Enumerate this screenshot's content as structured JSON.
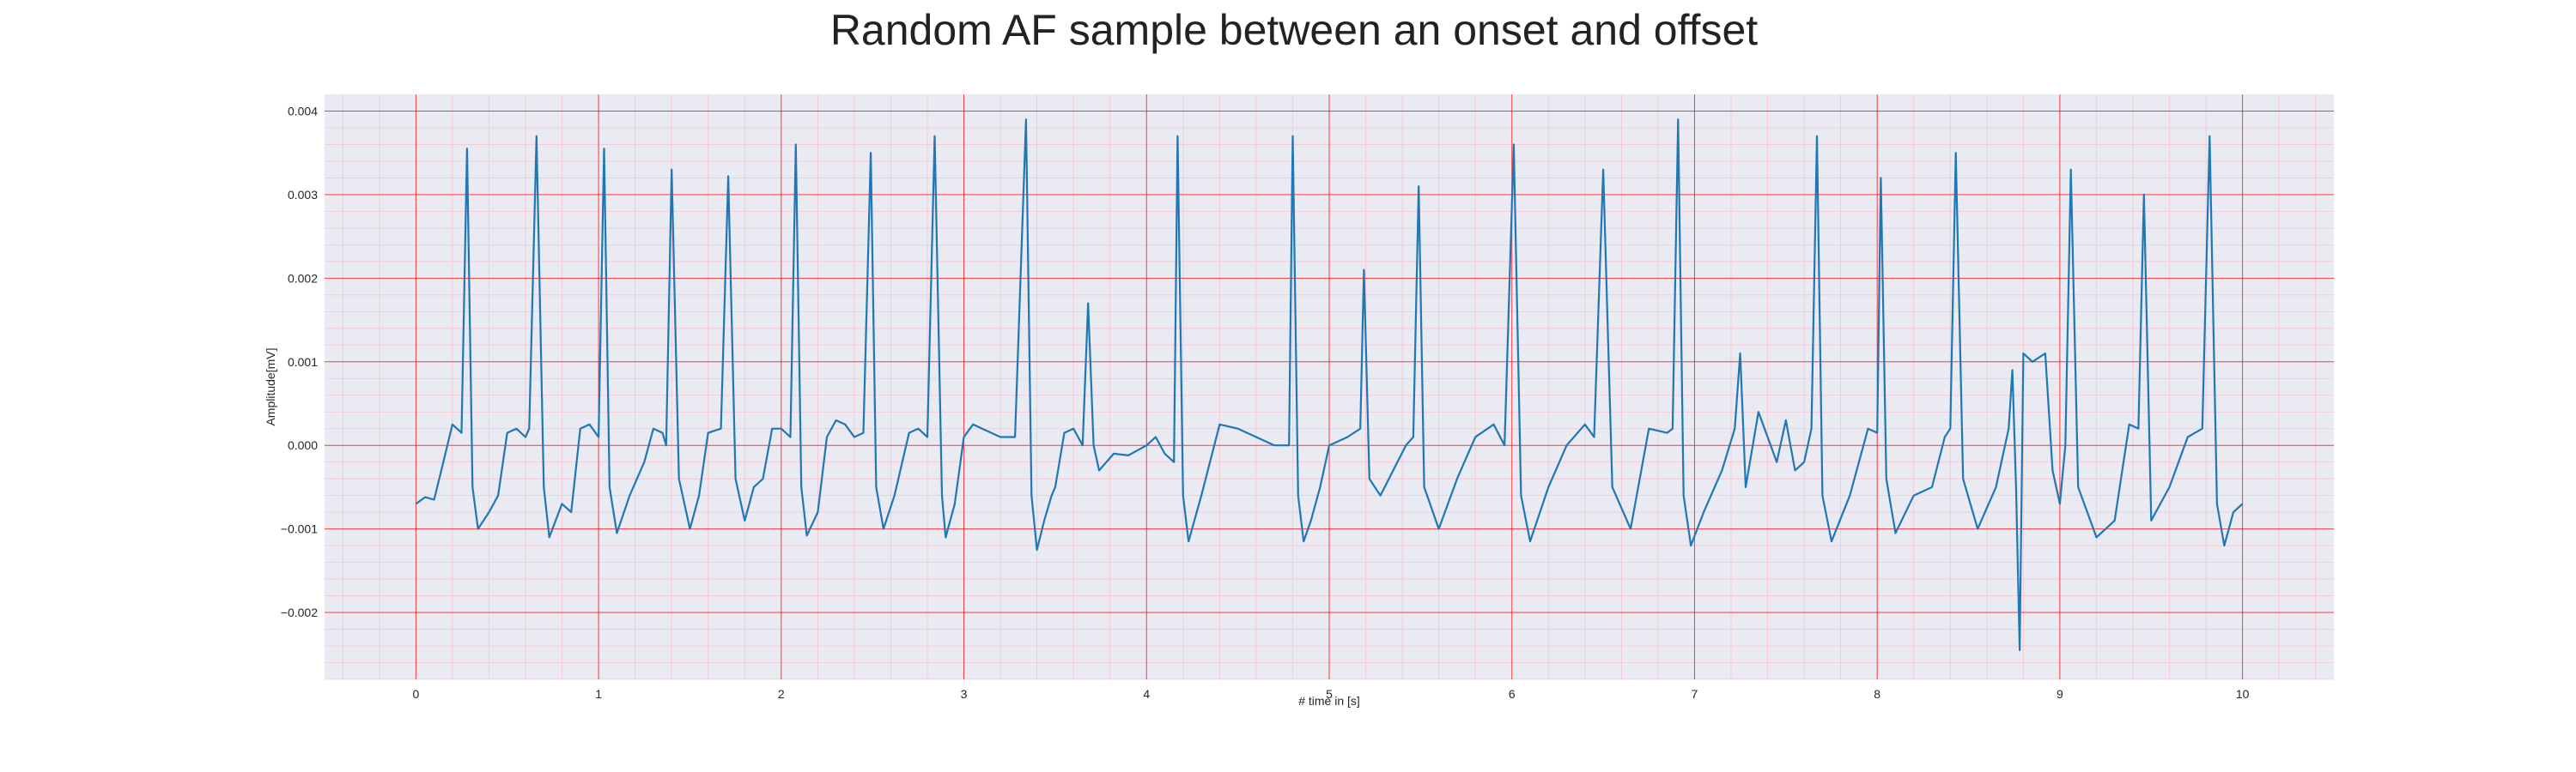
{
  "chart_data": {
    "type": "line",
    "title": "Random AF sample between an onset and offset",
    "xlabel": "# time in [s]",
    "ylabel": "Amplitude[mV]",
    "xlim": [
      -0.5,
      10.5
    ],
    "ylim": [
      -0.0028,
      0.0042
    ],
    "x_ticks": [
      0,
      1,
      2,
      3,
      4,
      5,
      6,
      7,
      8,
      9,
      10
    ],
    "x_tick_labels": [
      "0",
      "1",
      "2",
      "3",
      "4",
      "5",
      "6",
      "7",
      "8",
      "9",
      "10"
    ],
    "y_ticks": [
      -0.002,
      -0.001,
      0.0,
      0.001,
      0.002,
      0.003,
      0.004
    ],
    "y_tick_labels": [
      "−0.002",
      "−0.001",
      "0.000",
      "0.001",
      "0.002",
      "0.003",
      "0.004"
    ],
    "grid": true,
    "minor_grid": true,
    "legend": "none",
    "colors": {
      "line": "#1f77b4",
      "major_grid": "#ff0000",
      "minor_grid": "#ffb6c1",
      "plot_background": "#eaeaf2"
    },
    "series": [
      {
        "x": [
          0.0,
          0.05,
          0.1,
          0.15,
          0.2,
          0.25,
          0.28,
          0.31,
          0.34,
          0.4,
          0.45,
          0.5,
          0.55,
          0.6,
          0.62,
          0.66,
          0.7,
          0.73,
          0.8,
          0.85,
          0.9,
          0.95,
          1.0,
          1.03,
          1.06,
          1.1,
          1.17,
          1.25,
          1.3,
          1.35,
          1.37,
          1.4,
          1.44,
          1.5,
          1.55,
          1.6,
          1.67,
          1.71,
          1.75,
          1.8,
          1.85,
          1.9,
          1.95,
          2.0,
          2.05,
          2.08,
          2.11,
          2.14,
          2.2,
          2.25,
          2.3,
          2.35,
          2.4,
          2.45,
          2.49,
          2.52,
          2.56,
          2.62,
          2.7,
          2.75,
          2.8,
          2.84,
          2.88,
          2.9,
          2.95,
          3.0,
          3.05,
          3.1,
          3.2,
          3.28,
          3.34,
          3.37,
          3.4,
          3.44,
          3.48,
          3.5,
          3.55,
          3.6,
          3.65,
          3.68,
          3.71,
          3.74,
          3.78,
          3.82,
          3.9,
          4.0,
          4.05,
          4.1,
          4.15,
          4.17,
          4.2,
          4.23,
          4.3,
          4.4,
          4.5,
          4.6,
          4.7,
          4.78,
          4.8,
          4.83,
          4.86,
          4.9,
          4.95,
          5.0,
          5.1,
          5.17,
          5.19,
          5.22,
          5.28,
          5.35,
          5.42,
          5.46,
          5.49,
          5.52,
          5.6,
          5.7,
          5.8,
          5.9,
          5.96,
          6.01,
          6.05,
          6.1,
          6.2,
          6.3,
          6.4,
          6.45,
          6.5,
          6.55,
          6.65,
          6.75,
          6.85,
          6.88,
          6.91,
          6.94,
          6.98,
          7.05,
          7.15,
          7.22,
          7.25,
          7.28,
          7.35,
          7.45,
          7.5,
          7.55,
          7.6,
          7.64,
          7.67,
          7.7,
          7.75,
          7.85,
          7.95,
          8.0,
          8.02,
          8.05,
          8.1,
          8.2,
          8.3,
          8.37,
          8.4,
          8.43,
          8.47,
          8.55,
          8.65,
          8.72,
          8.74,
          8.76,
          8.78,
          8.8,
          8.85,
          8.92,
          8.96,
          9.0,
          9.03,
          9.06,
          9.1,
          9.2,
          9.3,
          9.38,
          9.43,
          9.46,
          9.5,
          9.6,
          9.7,
          9.78,
          9.82,
          9.86,
          9.9,
          9.95,
          10.0
        ],
        "y": [
          -0.0007,
          -0.00062,
          -0.00065,
          -0.0002,
          0.00025,
          0.00015,
          0.00355,
          -0.0005,
          -0.001,
          -0.0008,
          -0.0006,
          0.00015,
          0.0002,
          0.0001,
          0.0002,
          0.0037,
          -0.0005,
          -0.0011,
          -0.0007,
          -0.0008,
          0.0002,
          0.00025,
          0.0001,
          0.00355,
          -0.0005,
          -0.00105,
          -0.0006,
          -0.0002,
          0.0002,
          0.00015,
          0.0,
          0.0033,
          -0.0004,
          -0.001,
          -0.0006,
          0.00015,
          0.0002,
          0.00322,
          -0.0004,
          -0.0009,
          -0.0005,
          -0.0004,
          0.0002,
          0.0002,
          0.0001,
          0.0036,
          -0.0005,
          -0.00108,
          -0.0008,
          0.0001,
          0.0003,
          0.00025,
          0.0001,
          0.00015,
          0.0035,
          -0.0005,
          -0.001,
          -0.0006,
          0.00015,
          0.0002,
          0.0001,
          0.0037,
          -0.0006,
          -0.0011,
          -0.0007,
          0.0001,
          0.00025,
          0.0002,
          0.0001,
          0.0001,
          0.0039,
          -0.0006,
          -0.00125,
          -0.0009,
          -0.0006,
          -0.0005,
          0.00015,
          0.0002,
          0.0,
          0.0017,
          0.0,
          -0.0003,
          -0.0002,
          -0.0001,
          -0.00012,
          0.0,
          0.0001,
          -0.0001,
          -0.0002,
          0.0037,
          -0.0006,
          -0.00115,
          -0.0006,
          0.00025,
          0.0002,
          0.0001,
          0.0,
          0.0,
          0.0037,
          -0.0006,
          -0.00115,
          -0.0009,
          -0.0005,
          0.0,
          0.0001,
          0.0002,
          0.0021,
          -0.0004,
          -0.0006,
          -0.0003,
          0.0,
          0.0001,
          0.0031,
          -0.0005,
          -0.001,
          -0.0004,
          0.0001,
          0.00025,
          0.0,
          0.0036,
          -0.0006,
          -0.00115,
          -0.0005,
          0.0,
          0.00025,
          0.0001,
          0.0033,
          -0.0005,
          -0.001,
          0.0002,
          0.00015,
          0.0002,
          0.0039,
          -0.0006,
          -0.0012,
          -0.0008,
          -0.0003,
          0.0002,
          0.0011,
          -0.0005,
          0.0004,
          -0.0002,
          0.0003,
          -0.0003,
          -0.0002,
          0.0002,
          0.0037,
          -0.0006,
          -0.00115,
          -0.0006,
          0.0002,
          0.00015,
          0.0032,
          -0.0004,
          -0.00105,
          -0.0006,
          -0.0005,
          0.0001,
          0.0002,
          0.0035,
          -0.0004,
          -0.001,
          -0.0005,
          0.0002,
          0.0009,
          -0.0005,
          -0.00245,
          0.0011,
          0.001,
          0.0011,
          -0.0003,
          -0.0007,
          0.0,
          0.0033,
          -0.0005,
          -0.0011,
          -0.0009,
          0.00025,
          0.0002,
          0.003,
          -0.0009,
          -0.0005,
          0.0001,
          0.0002,
          0.0037,
          -0.0007,
          -0.0012,
          -0.0008,
          -0.0007
        ]
      }
    ]
  }
}
